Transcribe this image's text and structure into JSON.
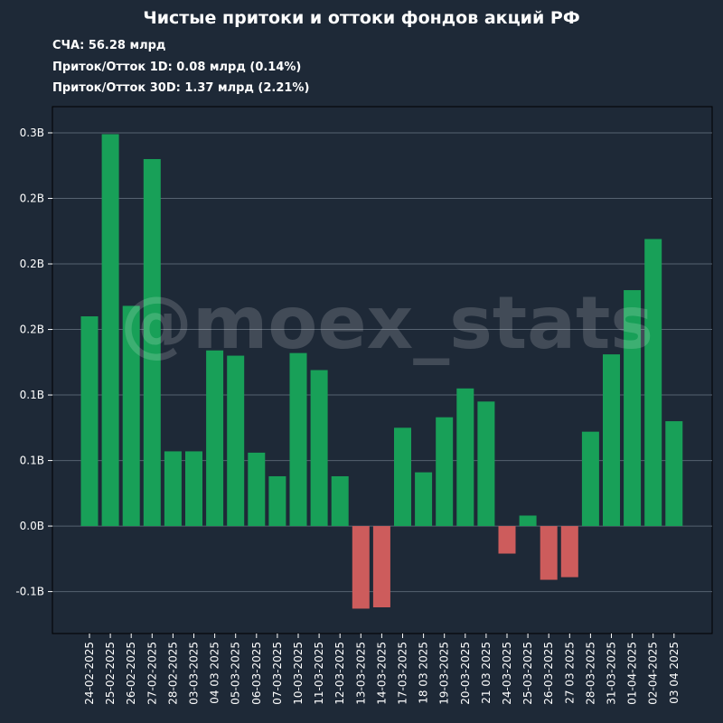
{
  "title": "Чистые притоки и оттоки фондов акций РФ",
  "stats": {
    "nav": "СЧА: 56.28 млрд",
    "flow_1d": "Приток/Отток 1D: 0.08 млрд (0.14%)",
    "flow_30d": "Приток/Отток 30D: 1.37 млрд (2.21%)"
  },
  "watermark": "@moex_stats",
  "colors": {
    "background": "#1e2937",
    "positive": "#18a058",
    "negative": "#cd5c5c",
    "grid": "#566270"
  },
  "chart_data": {
    "type": "bar",
    "categories": [
      "24-02-2025",
      "25-02-2025",
      "26-02-2025",
      "27-02-2025",
      "28-02-2025",
      "03-03-2025",
      "04 03 2025",
      "05-03-2025",
      "06-03-2025",
      "07-03-2025",
      "10-03-2025",
      "11-03-2025",
      "12-03-2025",
      "13-03-2025",
      "14-03-2025",
      "17-03-2025",
      "18 03 2025",
      "19-03-2025",
      "20-03-2025",
      "21 03 2025",
      "24-03-2025",
      "25-03-2025",
      "26-03-2025",
      "27 03 2025",
      "28-03-2025",
      "31-03-2025",
      "01-04-2025",
      "02-04-2025",
      "03 04 2025"
    ],
    "values": [
      0.16,
      0.299,
      0.168,
      0.28,
      0.057,
      0.057,
      0.134,
      0.13,
      0.056,
      0.038,
      0.132,
      0.119,
      0.038,
      -0.063,
      -0.062,
      0.075,
      0.041,
      0.083,
      0.105,
      0.095,
      -0.021,
      0.008,
      -0.041,
      -0.039,
      0.072,
      0.131,
      0.18,
      0.219,
      0.08
    ],
    "ylim": [
      -0.082,
      0.32
    ],
    "yticks": [
      -0.05,
      0.0,
      0.05,
      0.1,
      0.15,
      0.2,
      0.25,
      0.3
    ],
    "ytick_labels": [
      "-0.1B",
      "0.0B",
      "0.1B",
      "0.1B",
      "0.2B",
      "0.2B",
      "0.2B",
      "0.3B"
    ],
    "grid": true
  }
}
